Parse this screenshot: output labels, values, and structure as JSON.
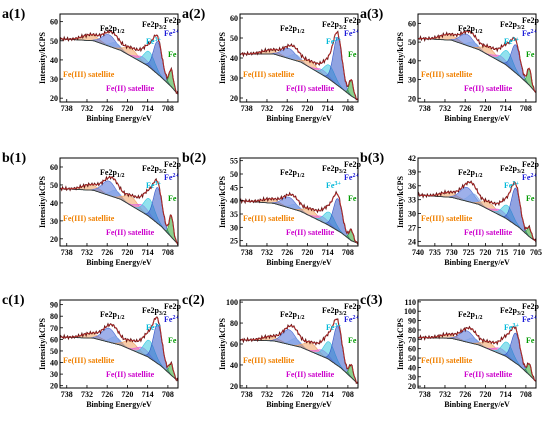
{
  "figure": {
    "labels": {
      "fe2p12": "Fe2p",
      "fe2p12_sub": "1/2",
      "fe2p32": "Fe2p",
      "fe2p32_sub": "3/2",
      "fe2p": "Fe2p",
      "fe3plus": "Fe",
      "fe3plus_sup": "3+",
      "fe2plus": "Fe",
      "fe2plus_sup": "2+",
      "fe0": "Fe",
      "fe3_sat": "Fe(III) satellite",
      "fe2_sat": "Fe(II) satellite"
    },
    "colors": {
      "raw": "#5a1010",
      "envelope": "#d63a3a",
      "background": "#3a3a3a",
      "fe2p12_peak": "#4f6fd8",
      "fe2p32_peak": "#3457c8",
      "fe3plus_peak": "#38c8e0",
      "fe0_peak": "#2ea82e",
      "fe3_sat_peak": "#f0a060",
      "fe2_sat_peak": "#e060e0",
      "fe3_label": "#f08000",
      "fe2_label": "#cc00cc",
      "fe3plus_label": "#00b8d8",
      "fe2plus_label": "#1a1ad8",
      "fe0_label": "#009a00"
    }
  },
  "chart_data": [
    {
      "id": "a1",
      "label": "a(1)",
      "type": "line",
      "xlabel": "Binbing Energy/eV",
      "ylabel": "Intensity/kCPS",
      "x_ticks": [
        738,
        732,
        726,
        720,
        714,
        708
      ],
      "xlim": [
        740,
        705
      ],
      "y_ticks": [
        20,
        30,
        40,
        50,
        60
      ],
      "ylim": [
        18,
        64
      ],
      "background": [
        [
          740,
          51
        ],
        [
          730,
          50
        ],
        [
          722,
          45
        ],
        [
          714,
          37
        ],
        [
          710,
          31
        ],
        [
          707,
          26
        ],
        [
          705,
          22
        ]
      ],
      "peaks": [
        {
          "name": "Fe(III) satellite",
          "center": 731,
          "height": 3,
          "width": 2.5
        },
        {
          "name": "Fe2p1/2 Fe3+",
          "center": 725.5,
          "height": 6,
          "width": 2.0
        },
        {
          "name": "Fe2p1/2",
          "center": 723.5,
          "height": 3,
          "width": 1.5
        },
        {
          "name": "Fe(III) satellite",
          "center": 719,
          "height": 4,
          "width": 2.0
        },
        {
          "name": "Fe(II) satellite",
          "center": 715.5,
          "height": 3,
          "width": 1.8
        },
        {
          "name": "Fe3+",
          "center": 713.5,
          "height": 8,
          "width": 1.6
        },
        {
          "name": "Fe2+",
          "center": 711,
          "height": 17,
          "width": 1.3
        },
        {
          "name": "Fe",
          "center": 707,
          "height": 9,
          "width": 0.6
        }
      ]
    },
    {
      "id": "a2",
      "label": "a(2)",
      "type": "line",
      "xlabel": "Binbing Energy/eV",
      "ylabel": "Intensity/kCPS",
      "x_ticks": [
        738,
        732,
        726,
        720,
        714,
        708
      ],
      "xlim": [
        740,
        705
      ],
      "y_ticks": [
        20,
        30,
        40,
        50,
        60
      ],
      "ylim": [
        18,
        62
      ],
      "background": [
        [
          740,
          42
        ],
        [
          730,
          42
        ],
        [
          722,
          38
        ],
        [
          714,
          30
        ],
        [
          710,
          25
        ],
        [
          707,
          21
        ],
        [
          705,
          19
        ]
      ],
      "peaks": [
        {
          "name": "Fe(III) satellite",
          "center": 731,
          "height": 2,
          "width": 2.5
        },
        {
          "name": "Fe2p1/2 Fe3+",
          "center": 725.5,
          "height": 5,
          "width": 2.0
        },
        {
          "name": "Fe2p1/2",
          "center": 723.5,
          "height": 3,
          "width": 1.5
        },
        {
          "name": "Fe(III) satellite",
          "center": 719,
          "height": 3,
          "width": 2.0
        },
        {
          "name": "Fe(II) satellite",
          "center": 715.5,
          "height": 2.5,
          "width": 1.8
        },
        {
          "name": "Fe3+",
          "center": 713.5,
          "height": 7,
          "width": 1.6
        },
        {
          "name": "Fe2+",
          "center": 711,
          "height": 24,
          "width": 1.3
        },
        {
          "name": "Fe",
          "center": 707,
          "height": 8,
          "width": 0.6
        }
      ]
    },
    {
      "id": "a3",
      "label": "a(3)",
      "type": "line",
      "xlabel": "Binbing Energy/eV",
      "ylabel": "Intensity/kCPS",
      "x_ticks": [
        738,
        732,
        726,
        720,
        714,
        708
      ],
      "xlim": [
        740,
        705
      ],
      "y_ticks": [
        20,
        30,
        40,
        50,
        60
      ],
      "ylim": [
        18,
        65
      ],
      "background": [
        [
          740,
          52
        ],
        [
          730,
          51
        ],
        [
          722,
          46
        ],
        [
          714,
          38
        ],
        [
          710,
          32
        ],
        [
          707,
          27
        ],
        [
          705,
          23
        ]
      ],
      "peaks": [
        {
          "name": "Fe(III) satellite",
          "center": 731,
          "height": 3,
          "width": 2.5
        },
        {
          "name": "Fe2p1/2 Fe3+",
          "center": 725.5,
          "height": 6,
          "width": 2.0
        },
        {
          "name": "Fe2p1/2",
          "center": 723.5,
          "height": 3,
          "width": 1.5
        },
        {
          "name": "Fe(III) satellite",
          "center": 719,
          "height": 4,
          "width": 2.0
        },
        {
          "name": "Fe(II) satellite",
          "center": 715.5,
          "height": 3,
          "width": 1.8
        },
        {
          "name": "Fe3+",
          "center": 713.5,
          "height": 8,
          "width": 1.6
        },
        {
          "name": "Fe2+",
          "center": 711,
          "height": 15,
          "width": 1.3
        },
        {
          "name": "Fe",
          "center": 707,
          "height": 9,
          "width": 0.6
        }
      ]
    },
    {
      "id": "b1",
      "label": "b(1)",
      "type": "line",
      "xlabel": "Binbing Energy/eV",
      "ylabel": "Intensity/kCPS",
      "x_ticks": [
        738,
        732,
        726,
        720,
        714,
        708
      ],
      "xlim": [
        740,
        705
      ],
      "y_ticks": [
        20,
        30,
        40,
        50,
        60
      ],
      "ylim": [
        16,
        65
      ],
      "background": [
        [
          740,
          48
        ],
        [
          730,
          47
        ],
        [
          722,
          42
        ],
        [
          714,
          33
        ],
        [
          710,
          27
        ],
        [
          707,
          21
        ],
        [
          705,
          17
        ]
      ],
      "peaks": [
        {
          "name": "Fe(III) satellite",
          "center": 731,
          "height": 3,
          "width": 2.5
        },
        {
          "name": "Fe2p1/2 Fe3+",
          "center": 725.5,
          "height": 8,
          "width": 2.0
        },
        {
          "name": "Fe2p1/2",
          "center": 723.5,
          "height": 4,
          "width": 1.5
        },
        {
          "name": "Fe(III) satellite",
          "center": 719,
          "height": 5,
          "width": 2.0
        },
        {
          "name": "Fe(II) satellite",
          "center": 715.5,
          "height": 4,
          "width": 1.8
        },
        {
          "name": "Fe3+",
          "center": 713.5,
          "height": 10,
          "width": 1.6
        },
        {
          "name": "Fe2+",
          "center": 711,
          "height": 20,
          "width": 1.3
        },
        {
          "name": "Fe",
          "center": 707,
          "height": 12,
          "width": 0.6
        }
      ]
    },
    {
      "id": "b2",
      "label": "b(2)",
      "type": "line",
      "xlabel": "Binbing Energy/eV",
      "ylabel": "Intensity/kCPS",
      "x_ticks": [
        738,
        732,
        726,
        720,
        714,
        708
      ],
      "xlim": [
        740,
        705
      ],
      "y_ticks": [
        25,
        30,
        35,
        40,
        45,
        50,
        55
      ],
      "ylim": [
        23,
        56
      ],
      "background": [
        [
          740,
          40
        ],
        [
          730,
          39
        ],
        [
          722,
          36
        ],
        [
          714,
          31
        ],
        [
          710,
          28
        ],
        [
          707,
          25
        ],
        [
          705,
          24
        ]
      ],
      "peaks": [
        {
          "name": "Fe(III) satellite",
          "center": 731,
          "height": 1.5,
          "width": 2.5
        },
        {
          "name": "Fe2p1/2 Fe3+",
          "center": 725.5,
          "height": 4,
          "width": 2.0
        },
        {
          "name": "Fe2p1/2",
          "center": 723.5,
          "height": 2,
          "width": 1.5
        },
        {
          "name": "Fe(III) satellite",
          "center": 719,
          "height": 2.5,
          "width": 2.0
        },
        {
          "name": "Fe(II) satellite",
          "center": 715.5,
          "height": 2,
          "width": 1.8
        },
        {
          "name": "Fe3+",
          "center": 713.5,
          "height": 5,
          "width": 1.6
        },
        {
          "name": "Fe2+",
          "center": 711,
          "height": 12,
          "width": 1.3
        },
        {
          "name": "Fe",
          "center": 707,
          "height": 4,
          "width": 0.6
        }
      ]
    },
    {
      "id": "b3",
      "label": "b(3)",
      "type": "line",
      "xlabel": "Binbing Energy/eV",
      "ylabel": "Intensity/kCPS",
      "x_ticks": [
        740,
        735,
        730,
        725,
        720,
        715,
        710,
        705
      ],
      "xlim": [
        740,
        705
      ],
      "y_ticks": [
        24,
        27,
        30,
        33,
        36,
        39,
        42
      ],
      "ylim": [
        23,
        42
      ],
      "background": [
        [
          740,
          34
        ],
        [
          730,
          33.5
        ],
        [
          722,
          32
        ],
        [
          714,
          29
        ],
        [
          710,
          27
        ],
        [
          707,
          25
        ],
        [
          705,
          24
        ]
      ],
      "peaks": [
        {
          "name": "Fe(III) satellite",
          "center": 731,
          "height": 1,
          "width": 2.5
        },
        {
          "name": "Fe2p1/2 Fe3+",
          "center": 725.5,
          "height": 3,
          "width": 2.0
        },
        {
          "name": "Fe2p1/2",
          "center": 723.5,
          "height": 2,
          "width": 1.5
        },
        {
          "name": "Fe(III) satellite",
          "center": 719,
          "height": 1.5,
          "width": 2.0
        },
        {
          "name": "Fe(II) satellite",
          "center": 715.5,
          "height": 1.2,
          "width": 1.8
        },
        {
          "name": "Fe3+",
          "center": 713.5,
          "height": 3,
          "width": 1.6
        },
        {
          "name": "Fe2+",
          "center": 711,
          "height": 8,
          "width": 1.3
        },
        {
          "name": "Fe",
          "center": 707,
          "height": 2,
          "width": 0.6
        }
      ]
    },
    {
      "id": "c1",
      "label": "c(1)",
      "type": "line",
      "xlabel": "Binbing Energy/eV",
      "ylabel": "Intensity/kCPS",
      "x_ticks": [
        738,
        732,
        726,
        720,
        714,
        708
      ],
      "xlim": [
        740,
        705
      ],
      "y_ticks": [
        20,
        30,
        40,
        50,
        60,
        70,
        80,
        90
      ],
      "ylim": [
        18,
        94
      ],
      "background": [
        [
          740,
          62
        ],
        [
          730,
          61
        ],
        [
          722,
          55
        ],
        [
          714,
          45
        ],
        [
          710,
          37
        ],
        [
          707,
          29
        ],
        [
          705,
          24
        ]
      ],
      "peaks": [
        {
          "name": "Fe(III) satellite",
          "center": 731,
          "height": 4,
          "width": 2.5
        },
        {
          "name": "Fe2p1/2 Fe3+",
          "center": 725.5,
          "height": 12,
          "width": 2.0
        },
        {
          "name": "Fe2p1/2",
          "center": 723.5,
          "height": 6,
          "width": 1.5
        },
        {
          "name": "Fe(III) satellite",
          "center": 719,
          "height": 7,
          "width": 2.0
        },
        {
          "name": "Fe(II) satellite",
          "center": 715.5,
          "height": 6,
          "width": 1.8
        },
        {
          "name": "Fe3+",
          "center": 713.5,
          "height": 15,
          "width": 1.6
        },
        {
          "name": "Fe2+",
          "center": 711,
          "height": 34,
          "width": 1.3
        },
        {
          "name": "Fe",
          "center": 707,
          "height": 10,
          "width": 0.6
        }
      ]
    },
    {
      "id": "c2",
      "label": "c(2)",
      "type": "line",
      "xlabel": "Binbing Energy/eV",
      "ylabel": "Intensity/kCPS",
      "x_ticks": [
        738,
        732,
        726,
        720,
        714,
        708
      ],
      "xlim": [
        740,
        705
      ],
      "y_ticks": [
        20,
        40,
        60,
        80,
        100
      ],
      "ylim": [
        18,
        102
      ],
      "background": [
        [
          740,
          64
        ],
        [
          730,
          63
        ],
        [
          722,
          57
        ],
        [
          714,
          46
        ],
        [
          710,
          37
        ],
        [
          707,
          28
        ],
        [
          705,
          22
        ]
      ],
      "peaks": [
        {
          "name": "Fe(III) satellite",
          "center": 731,
          "height": 4,
          "width": 2.5
        },
        {
          "name": "Fe2p1/2 Fe3+",
          "center": 725.5,
          "height": 14,
          "width": 2.0
        },
        {
          "name": "Fe2p1/2",
          "center": 723.5,
          "height": 7,
          "width": 1.5
        },
        {
          "name": "Fe(III) satellite",
          "center": 719,
          "height": 8,
          "width": 2.0
        },
        {
          "name": "Fe(II) satellite",
          "center": 715.5,
          "height": 6,
          "width": 1.8
        },
        {
          "name": "Fe3+",
          "center": 713.5,
          "height": 17,
          "width": 1.6
        },
        {
          "name": "Fe2+",
          "center": 711,
          "height": 38,
          "width": 1.3
        },
        {
          "name": "Fe",
          "center": 707,
          "height": 12,
          "width": 0.6
        }
      ]
    },
    {
      "id": "c3",
      "label": "c(3)",
      "type": "line",
      "xlabel": "Binbing Energy/eV",
      "ylabel": "Intensity/kCPS",
      "x_ticks": [
        738,
        732,
        726,
        720,
        714,
        708
      ],
      "xlim": [
        740,
        705
      ],
      "y_ticks": [
        20,
        30,
        40,
        50,
        60,
        70,
        80,
        90,
        100,
        110
      ],
      "ylim": [
        18,
        112
      ],
      "background": [
        [
          740,
          72
        ],
        [
          730,
          71
        ],
        [
          722,
          64
        ],
        [
          714,
          52
        ],
        [
          710,
          42
        ],
        [
          707,
          32
        ],
        [
          705,
          25
        ]
      ],
      "peaks": [
        {
          "name": "Fe(III) satellite",
          "center": 731,
          "height": 4,
          "width": 2.5
        },
        {
          "name": "Fe2p1/2 Fe3+",
          "center": 725.5,
          "height": 12,
          "width": 2.0
        },
        {
          "name": "Fe2p1/2",
          "center": 723.5,
          "height": 6,
          "width": 1.5
        },
        {
          "name": "Fe(III) satellite",
          "center": 719,
          "height": 7,
          "width": 2.0
        },
        {
          "name": "Fe(II) satellite",
          "center": 715.5,
          "height": 6,
          "width": 1.8
        },
        {
          "name": "Fe3+",
          "center": 713.5,
          "height": 16,
          "width": 1.6
        },
        {
          "name": "Fe2+",
          "center": 711,
          "height": 32,
          "width": 1.3
        },
        {
          "name": "Fe",
          "center": 707,
          "height": 12,
          "width": 0.6
        }
      ]
    }
  ]
}
